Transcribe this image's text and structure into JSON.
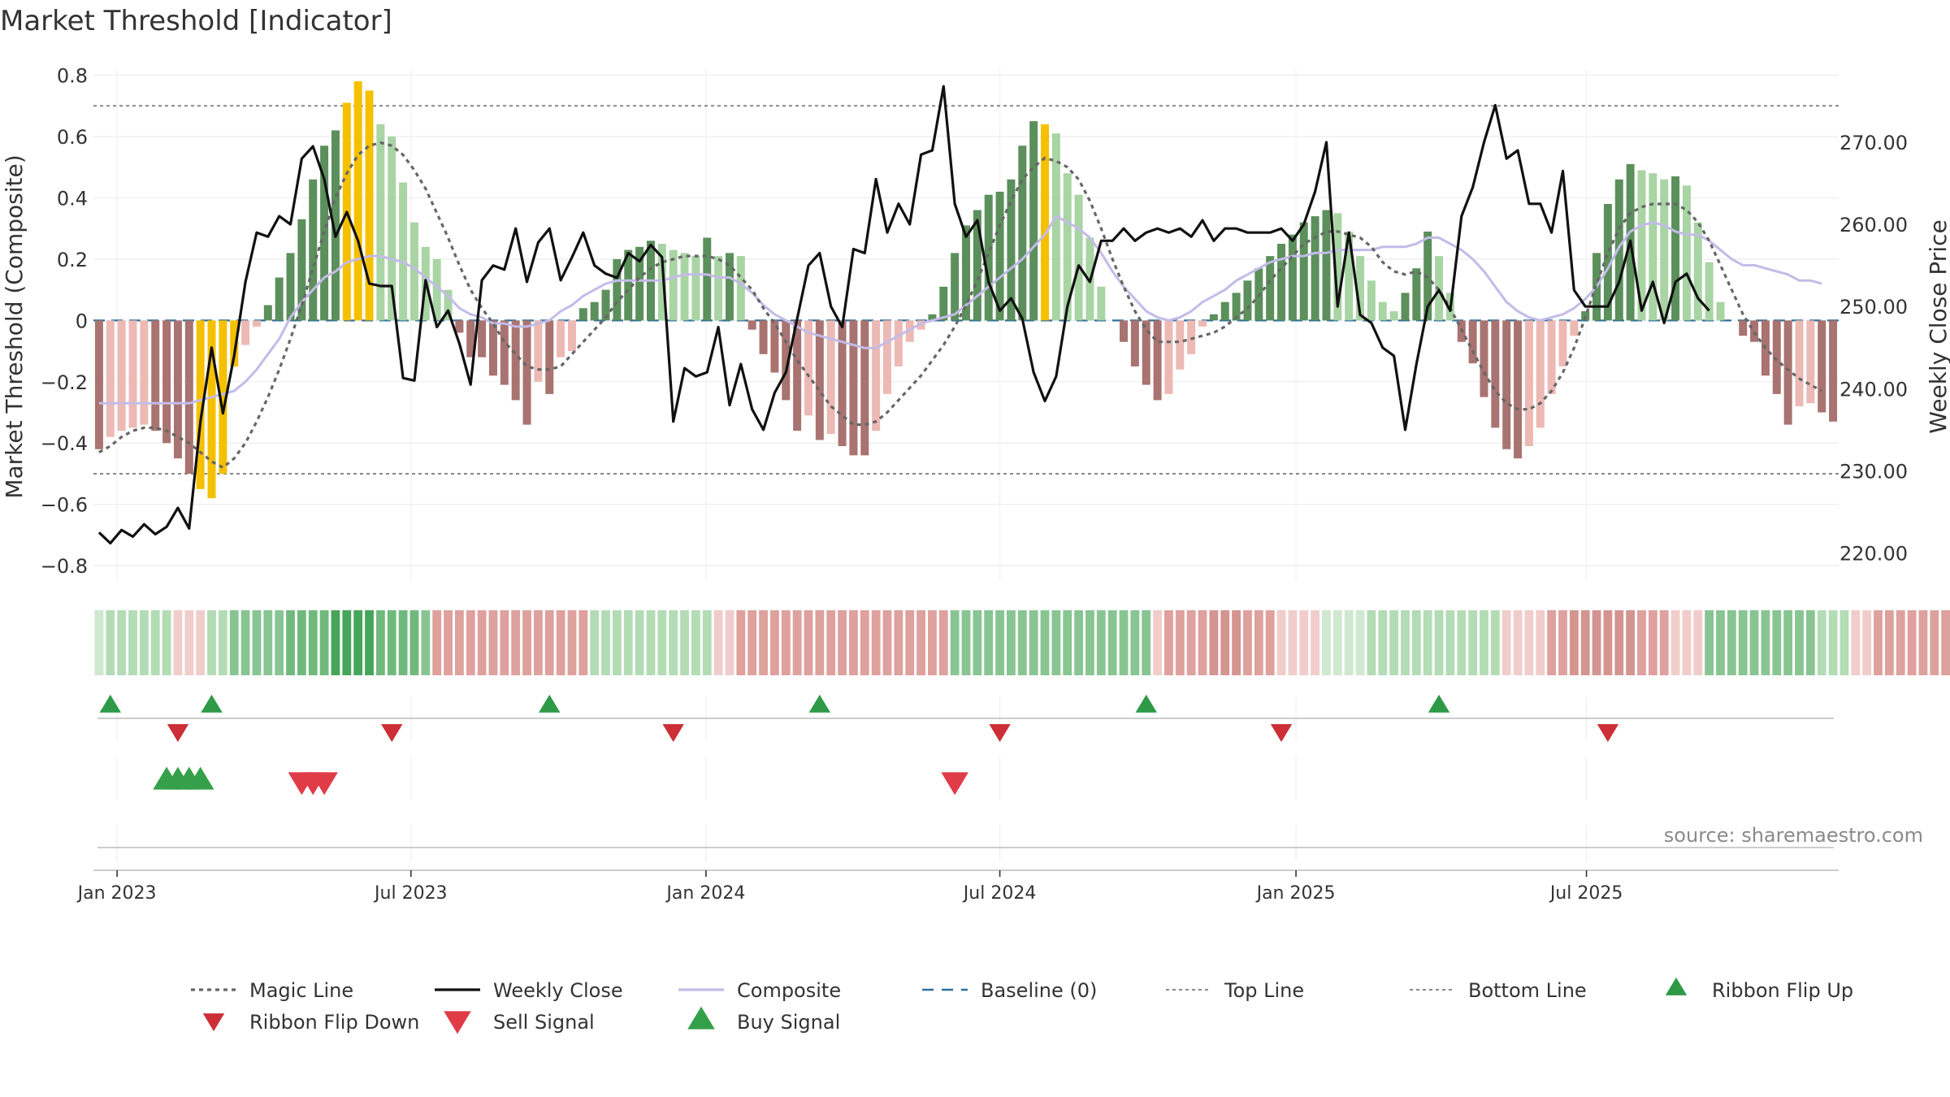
{
  "chart_data": {
    "type": "bar",
    "title": "Market Threshold [Indicator]",
    "ylabel_left": "Market Threshold (Composite)",
    "ylabel_right": "Weekly Close Price",
    "source": "source: sharemaestro.com",
    "ylim_left": [
      -0.85,
      0.82
    ],
    "ylim_right": [
      216.6,
      278.9
    ],
    "yticks_left": [
      {
        "v": 0.8,
        "label": "0.8"
      },
      {
        "v": 0.6,
        "label": "0.6"
      },
      {
        "v": 0.4,
        "label": "0.4"
      },
      {
        "v": 0.2,
        "label": "0.2"
      },
      {
        "v": 0.0,
        "label": "0"
      },
      {
        "v": -0.2,
        "label": "−0.2"
      },
      {
        "v": -0.4,
        "label": "−0.4"
      },
      {
        "v": -0.6,
        "label": "−0.6"
      },
      {
        "v": -0.8,
        "label": "−0.8"
      }
    ],
    "yticks_right": [
      {
        "v": 270,
        "label": "270.00"
      },
      {
        "v": 260,
        "label": "260.00"
      },
      {
        "v": 250,
        "label": "250.00"
      },
      {
        "v": 240,
        "label": "240.00"
      },
      {
        "v": 230,
        "label": "230.00"
      },
      {
        "v": 220,
        "label": "220.00"
      }
    ],
    "xticks": [
      {
        "i": 1.6,
        "label": "Jan 2023"
      },
      {
        "i": 27.7,
        "label": "Jul 2023"
      },
      {
        "i": 53.9,
        "label": "Jan 2024"
      },
      {
        "i": 80.0,
        "label": "Jul 2024"
      },
      {
        "i": 106.3,
        "label": "Jan 2025"
      },
      {
        "i": 132.1,
        "label": "Jul 2025"
      }
    ],
    "top_line": 0.7,
    "bottom_line": -0.5,
    "composite": [
      -0.42,
      -0.38,
      -0.36,
      -0.35,
      -0.34,
      -0.36,
      -0.4,
      -0.45,
      -0.5,
      -0.55,
      -0.58,
      -0.5,
      -0.15,
      -0.08,
      -0.02,
      0.05,
      0.14,
      0.22,
      0.33,
      0.46,
      0.57,
      0.62,
      0.71,
      0.78,
      0.75,
      0.64,
      0.6,
      0.45,
      0.32,
      0.24,
      0.2,
      0.1,
      -0.04,
      -0.12,
      -0.12,
      -0.18,
      -0.21,
      -0.26,
      -0.34,
      -0.2,
      -0.24,
      -0.12,
      -0.1,
      0.04,
      0.06,
      0.1,
      0.2,
      0.23,
      0.24,
      0.26,
      0.25,
      0.23,
      0.22,
      0.21,
      0.27,
      0.21,
      0.22,
      0.21,
      -0.03,
      -0.11,
      -0.17,
      -0.26,
      -0.36,
      -0.31,
      -0.39,
      -0.37,
      -0.41,
      -0.44,
      -0.44,
      -0.36,
      -0.24,
      -0.15,
      -0.07,
      -0.03,
      0.02,
      0.11,
      0.22,
      0.31,
      0.36,
      0.41,
      0.42,
      0.46,
      0.57,
      0.65,
      0.64,
      0.61,
      0.48,
      0.41,
      0.27,
      0.11,
      0.0,
      -0.07,
      -0.15,
      -0.21,
      -0.26,
      -0.24,
      -0.16,
      -0.11,
      -0.02,
      0.02,
      0.06,
      0.09,
      0.13,
      0.17,
      0.21,
      0.25,
      0.28,
      0.32,
      0.34,
      0.36,
      0.35,
      0.29,
      0.21,
      0.13,
      0.06,
      0.03,
      0.09,
      0.17,
      0.29,
      0.21,
      0.09,
      -0.07,
      -0.14,
      -0.25,
      -0.35,
      -0.42,
      -0.45,
      -0.41,
      -0.35,
      -0.24,
      -0.15,
      -0.05,
      0.03,
      0.22,
      0.38,
      0.46,
      0.51,
      0.49,
      0.48,
      0.46,
      0.47,
      0.44,
      0.32,
      0.19,
      0.06,
      0.0,
      -0.05,
      -0.07,
      -0.18,
      -0.24,
      -0.34,
      -0.28,
      -0.27,
      -0.3,
      -0.33
    ],
    "magic_line": [
      -0.43,
      -0.41,
      -0.38,
      -0.36,
      -0.35,
      -0.35,
      -0.36,
      -0.38,
      -0.4,
      -0.43,
      -0.46,
      -0.48,
      -0.45,
      -0.4,
      -0.33,
      -0.25,
      -0.16,
      -0.06,
      0.05,
      0.17,
      0.29,
      0.4,
      0.48,
      0.54,
      0.57,
      0.58,
      0.57,
      0.54,
      0.49,
      0.43,
      0.35,
      0.27,
      0.18,
      0.1,
      0.04,
      -0.01,
      -0.07,
      -0.11,
      -0.15,
      -0.16,
      -0.16,
      -0.15,
      -0.11,
      -0.07,
      -0.03,
      0.01,
      0.06,
      0.1,
      0.14,
      0.17,
      0.19,
      0.2,
      0.21,
      0.21,
      0.21,
      0.2,
      0.18,
      0.14,
      0.1,
      0.04,
      -0.01,
      -0.07,
      -0.13,
      -0.18,
      -0.23,
      -0.28,
      -0.31,
      -0.34,
      -0.34,
      -0.33,
      -0.3,
      -0.26,
      -0.22,
      -0.18,
      -0.13,
      -0.08,
      -0.02,
      0.05,
      0.13,
      0.22,
      0.31,
      0.39,
      0.46,
      0.5,
      0.53,
      0.52,
      0.5,
      0.46,
      0.39,
      0.3,
      0.2,
      0.11,
      0.03,
      -0.03,
      -0.07,
      -0.07,
      -0.07,
      -0.06,
      -0.05,
      -0.04,
      -0.02,
      0.01,
      0.04,
      0.08,
      0.13,
      0.17,
      0.21,
      0.25,
      0.27,
      0.29,
      0.29,
      0.28,
      0.27,
      0.24,
      0.19,
      0.16,
      0.15,
      0.16,
      0.14,
      0.1,
      0.04,
      -0.03,
      -0.1,
      -0.17,
      -0.23,
      -0.27,
      -0.29,
      -0.29,
      -0.27,
      -0.23,
      -0.17,
      -0.09,
      0.01,
      0.12,
      0.22,
      0.3,
      0.35,
      0.37,
      0.38,
      0.38,
      0.38,
      0.36,
      0.32,
      0.26,
      0.18,
      0.1,
      0.02,
      -0.04,
      -0.09,
      -0.13,
      -0.16,
      -0.19,
      -0.21,
      -0.23
    ],
    "composite_smooth": [
      -0.27,
      -0.27,
      -0.27,
      -0.27,
      -0.27,
      -0.27,
      -0.27,
      -0.27,
      -0.27,
      -0.26,
      -0.25,
      -0.24,
      -0.23,
      -0.2,
      -0.16,
      -0.11,
      -0.06,
      0.01,
      0.06,
      0.1,
      0.14,
      0.16,
      0.19,
      0.2,
      0.21,
      0.21,
      0.2,
      0.19,
      0.17,
      0.14,
      0.11,
      0.08,
      0.04,
      0.02,
      0.01,
      -0.01,
      -0.01,
      -0.02,
      -0.02,
      -0.01,
      0.0,
      0.03,
      0.05,
      0.08,
      0.1,
      0.12,
      0.13,
      0.13,
      0.13,
      0.13,
      0.13,
      0.14,
      0.15,
      0.15,
      0.15,
      0.14,
      0.14,
      0.12,
      0.09,
      0.05,
      0.02,
      0.0,
      -0.02,
      -0.04,
      -0.05,
      -0.06,
      -0.07,
      -0.08,
      -0.09,
      -0.09,
      -0.07,
      -0.05,
      -0.03,
      -0.01,
      0.0,
      0.01,
      0.02,
      0.05,
      0.08,
      0.11,
      0.14,
      0.17,
      0.2,
      0.24,
      0.28,
      0.34,
      0.32,
      0.3,
      0.27,
      0.22,
      0.16,
      0.11,
      0.07,
      0.03,
      0.01,
      0.0,
      0.01,
      0.03,
      0.06,
      0.08,
      0.1,
      0.13,
      0.15,
      0.17,
      0.19,
      0.2,
      0.21,
      0.21,
      0.22,
      0.22,
      0.23,
      0.23,
      0.23,
      0.23,
      0.24,
      0.24,
      0.24,
      0.25,
      0.27,
      0.27,
      0.25,
      0.23,
      0.2,
      0.16,
      0.11,
      0.06,
      0.03,
      0.01,
      0.0,
      0.01,
      0.02,
      0.04,
      0.07,
      0.11,
      0.17,
      0.24,
      0.29,
      0.31,
      0.32,
      0.31,
      0.29,
      0.28,
      0.28,
      0.26,
      0.23,
      0.2,
      0.18,
      0.18,
      0.17,
      0.16,
      0.15,
      0.13,
      0.13,
      0.12
    ],
    "weekly_close": [
      222.5,
      221.2,
      222.8,
      222.0,
      223.5,
      222.3,
      223.2,
      225.5,
      223.0,
      236.0,
      245.0,
      237.0,
      244.0,
      253.0,
      259.0,
      258.5,
      261.0,
      260.0,
      268.0,
      269.5,
      265.5,
      258.5,
      261.5,
      258.0,
      252.8,
      252.5,
      252.5,
      241.3,
      241.0,
      253.2,
      247.5,
      249.5,
      245.5,
      240.5,
      253.2,
      255.0,
      254.5,
      259.5,
      253.0,
      257.8,
      259.5,
      253.2,
      256.0,
      259.0,
      255.0,
      254.0,
      253.5,
      256.5,
      255.5,
      257.5,
      256.0,
      236.0,
      242.5,
      241.5,
      242.0,
      247.5,
      238.0,
      243.0,
      237.5,
      235.0,
      239.5,
      242.0,
      248.5,
      255.0,
      256.5,
      250.0,
      247.5,
      257.0,
      256.5,
      265.5,
      259.0,
      262.5,
      260.0,
      268.5,
      269.0,
      276.8,
      262.5,
      258.5,
      260.5,
      253.0,
      249.5,
      251.0,
      248.5,
      242.0,
      238.5,
      241.5,
      250.0,
      255.0,
      253.0,
      258.0,
      258.0,
      259.5,
      258.0,
      259.0,
      259.5,
      259.0,
      259.5,
      258.5,
      260.5,
      258.0,
      259.5,
      259.5,
      259.0,
      259.0,
      259.0,
      259.5,
      258.0,
      260.0,
      264.0,
      270.0,
      250.0,
      259.0,
      249.0,
      248.0,
      245.0,
      244.0,
      235.0,
      243.0,
      250.0,
      252.0,
      249.5,
      261.0,
      264.5,
      270.0,
      274.5,
      268.0,
      269.0,
      262.5,
      262.5,
      259.0,
      266.5,
      252.0,
      250.0,
      250.0,
      250.0,
      253.0,
      258.0,
      249.5,
      253.0,
      248.0,
      253.0,
      254.0,
      251.0,
      249.5
    ],
    "gold_bars": [
      9,
      10,
      11,
      12,
      22,
      23,
      24,
      84
    ],
    "ribbon": [
      0,
      1,
      1,
      1,
      1,
      1,
      1,
      -1,
      -1,
      -1,
      1,
      1,
      2,
      2,
      2,
      2,
      2,
      3,
      3,
      3,
      3,
      4,
      4,
      4,
      4,
      3,
      3,
      3,
      3,
      2,
      -2,
      -2,
      -2,
      -2,
      -2,
      -2,
      -2,
      -2,
      -2,
      -2,
      -2,
      -2,
      -2,
      -2,
      1,
      1,
      1,
      1,
      1,
      1,
      1,
      1,
      1,
      1,
      1,
      -1,
      -1,
      -2,
      -2,
      -2,
      -2,
      -2,
      -2,
      -2,
      -2,
      -2,
      -2,
      -2,
      -2,
      -2,
      -2,
      -2,
      -2,
      -2,
      -2,
      -2,
      2,
      2,
      2,
      2,
      2,
      2,
      2,
      2,
      2,
      2,
      2,
      2,
      2,
      2,
      2,
      2,
      2,
      2,
      -1,
      -2,
      -2,
      -2,
      -2,
      -3,
      -3,
      -3,
      -2,
      -2,
      -2,
      -1,
      -1,
      -1,
      -1,
      0,
      0,
      0,
      0,
      1,
      1,
      1,
      1,
      1,
      1,
      1,
      1,
      1,
      1,
      1,
      1,
      -1,
      -1,
      -1,
      -1,
      -2,
      -2,
      -3,
      -3,
      -3,
      -3,
      -3,
      -3,
      -2,
      -2,
      -2,
      -1,
      -1,
      -1,
      2,
      2,
      2,
      2,
      2,
      2,
      2,
      2,
      2,
      2,
      1,
      1,
      1,
      -1,
      -1,
      -2,
      -2,
      -2,
      -2,
      -2,
      -2,
      -2,
      -2
    ],
    "ribbon_flip_up_idx": [
      1,
      10,
      40,
      64,
      93,
      119
    ],
    "ribbon_flip_down_idx": [
      7,
      26,
      51,
      80,
      105,
      134
    ],
    "buy_signal_idx": [
      6,
      7,
      8,
      9
    ],
    "sell_signal_idx": [
      18,
      19,
      20,
      76
    ],
    "legend": [
      {
        "key": "magic",
        "label": "Magic Line"
      },
      {
        "key": "close",
        "label": "Weekly Close"
      },
      {
        "key": "composite",
        "label": "Composite"
      },
      {
        "key": "baseline",
        "label": "Baseline (0)"
      },
      {
        "key": "top",
        "label": "Top Line"
      },
      {
        "key": "bottom",
        "label": "Bottom Line"
      },
      {
        "key": "flipup",
        "label": "Ribbon Flip Up"
      },
      {
        "key": "flipdown",
        "label": "Ribbon Flip Down"
      },
      {
        "key": "sell",
        "label": "Sell Signal"
      },
      {
        "key": "buy",
        "label": "Buy Signal"
      }
    ],
    "colors": {
      "pos_strong": "#5b8f5b",
      "pos_weak": "#a9d4a4",
      "neg_strong": "#a87370",
      "neg_weak": "#ecb9b4",
      "gold": "#f5c000",
      "close": "#111111",
      "magic": "#666666",
      "composite_line": "#c3bbe8",
      "baseline": "#2e6f9e",
      "ref_line": "#888888",
      "flip_up": "#2e9a48",
      "flip_down": "#cc2f36",
      "sell": "#e03c48",
      "buy": "#35a04a"
    }
  }
}
